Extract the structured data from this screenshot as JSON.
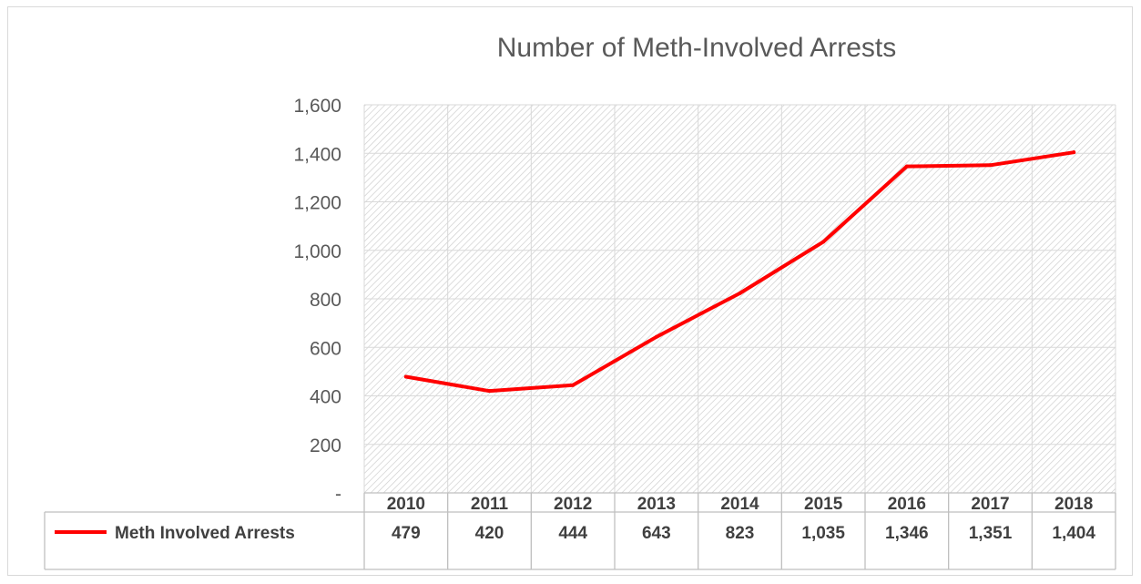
{
  "chart_data": {
    "type": "line",
    "title": "Number of Meth-Involved Arrests",
    "categories": [
      "2010",
      "2011",
      "2012",
      "2013",
      "2014",
      "2015",
      "2016",
      "2017",
      "2018"
    ],
    "series": [
      {
        "name": "Meth Involved Arrests",
        "values": [
          479,
          420,
          444,
          643,
          823,
          1035,
          1346,
          1351,
          1404
        ],
        "value_labels": [
          "479",
          "420",
          "444",
          "643",
          "823",
          "1,035",
          "1,346",
          "1,351",
          "1,404"
        ],
        "color": "#ff0000"
      }
    ],
    "ylim": [
      0,
      1600
    ],
    "yticks": [
      0,
      200,
      400,
      600,
      800,
      1000,
      1200,
      1400,
      1600
    ],
    "ytick_labels": [
      "-",
      "200",
      "400",
      "600",
      "800",
      "1,000",
      "1,200",
      "1,400",
      "1,600"
    ],
    "grid": true,
    "plot_fill": "diagonal-hatch",
    "data_table": true,
    "legend_placement": "data-table-row"
  }
}
